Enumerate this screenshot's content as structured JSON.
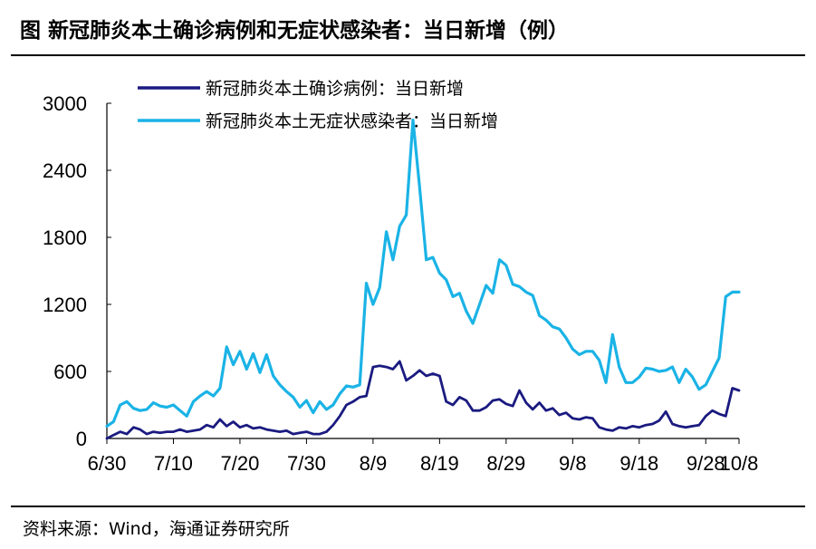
{
  "header": {
    "title": "图  新冠肺炎本土确诊病例和无症状感染者：当日新增（例）"
  },
  "footer": {
    "source": "资料来源：Wind，海通证券研究所"
  },
  "chart_data": {
    "type": "line",
    "ylim": [
      0,
      3000
    ],
    "y_ticks": [
      "0",
      "600",
      "1200",
      "1800",
      "2400",
      "3000"
    ],
    "x_ticks": [
      "6/30",
      "7/10",
      "7/20",
      "7/30",
      "8/9",
      "8/19",
      "8/29",
      "9/8",
      "9/18",
      "9/28",
      "10/8"
    ],
    "legend_position": "top-center",
    "grid": false,
    "series": [
      {
        "name": "新冠肺炎本土确诊病例：当日新增",
        "color": "#1a1a80",
        "values": [
          0,
          30,
          60,
          40,
          100,
          80,
          40,
          60,
          50,
          60,
          60,
          80,
          60,
          70,
          80,
          120,
          100,
          170,
          110,
          150,
          100,
          120,
          90,
          100,
          80,
          70,
          60,
          70,
          40,
          50,
          60,
          40,
          40,
          60,
          120,
          200,
          300,
          330,
          370,
          380,
          640,
          650,
          640,
          620,
          690,
          520,
          560,
          610,
          560,
          580,
          560,
          330,
          300,
          370,
          340,
          250,
          250,
          280,
          340,
          350,
          310,
          290,
          430,
          320,
          260,
          320,
          250,
          270,
          210,
          230,
          180,
          170,
          190,
          180,
          100,
          80,
          70,
          100,
          90,
          110,
          100,
          120,
          130,
          160,
          240,
          130,
          110,
          100,
          110,
          120,
          200,
          250,
          220,
          200,
          450,
          430
        ]
      },
      {
        "name": "新冠肺炎本土无症状感染者：当日新增",
        "color": "#1ab3e6",
        "values": [
          110,
          150,
          300,
          330,
          270,
          250,
          260,
          320,
          290,
          280,
          300,
          250,
          200,
          330,
          380,
          420,
          380,
          450,
          820,
          660,
          780,
          620,
          760,
          590,
          750,
          560,
          480,
          420,
          370,
          280,
          340,
          230,
          330,
          260,
          300,
          400,
          470,
          460,
          480,
          1390,
          1200,
          1350,
          1850,
          1600,
          1900,
          2000,
          2850,
          2250,
          1600,
          1620,
          1480,
          1420,
          1270,
          1300,
          1140,
          1030,
          1200,
          1370,
          1300,
          1600,
          1550,
          1380,
          1360,
          1310,
          1280,
          1100,
          1060,
          1000,
          980,
          900,
          800,
          750,
          780,
          780,
          700,
          500,
          930,
          640,
          500,
          500,
          550,
          630,
          620,
          600,
          610,
          640,
          500,
          620,
          550,
          440,
          480,
          600,
          720,
          1270,
          1310,
          1310
        ]
      }
    ]
  }
}
